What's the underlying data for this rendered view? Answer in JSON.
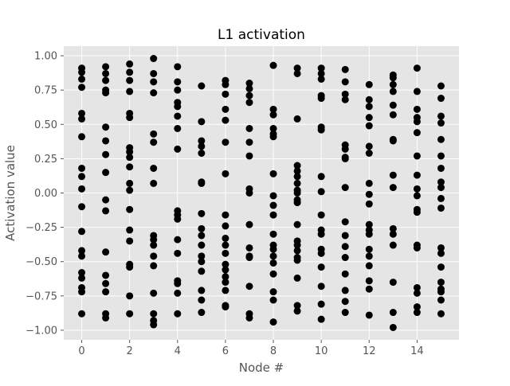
{
  "chart_data": {
    "type": "scatter",
    "title": "L1 activation",
    "xlabel": "Node #",
    "ylabel": "Activation value",
    "xlim": [
      -0.75,
      15.75
    ],
    "ylim": [
      -1.07,
      1.07
    ],
    "xticks": [
      0,
      2,
      4,
      6,
      8,
      10,
      12,
      14
    ],
    "xtick_labels": [
      "0",
      "2",
      "4",
      "6",
      "8",
      "10",
      "12",
      "14"
    ],
    "yticks": [
      -1.0,
      -0.75,
      -0.5,
      -0.25,
      0.0,
      0.25,
      0.5,
      0.75,
      1.0
    ],
    "ytick_labels": [
      "−1.00",
      "−0.75",
      "−0.50",
      "−0.25",
      "0.00",
      "0.25",
      "0.50",
      "0.75",
      "1.00"
    ],
    "grid": true,
    "background": "#e5e5e5",
    "marker_color": "#000000",
    "points_by_x": [
      {
        "x": 0,
        "y": [
          0.91,
          0.88,
          0.83,
          0.77,
          0.58,
          0.54,
          0.41,
          0.18,
          0.12,
          0.03,
          -0.1,
          -0.28,
          -0.42,
          -0.46,
          -0.58,
          -0.62,
          -0.69,
          -0.72,
          -0.88
        ]
      },
      {
        "x": 1,
        "y": [
          0.92,
          0.87,
          0.82,
          0.75,
          0.73,
          0.48,
          0.38,
          0.28,
          0.15,
          -0.05,
          -0.13,
          -0.43,
          -0.6,
          -0.66,
          -0.72,
          -0.88,
          -0.91
        ]
      },
      {
        "x": 2,
        "y": [
          0.94,
          0.88,
          0.82,
          0.74,
          0.58,
          0.55,
          0.33,
          0.3,
          0.26,
          0.19,
          0.07,
          0.02,
          -0.12,
          -0.27,
          -0.35,
          -0.52,
          -0.54,
          -0.75,
          -0.88
        ]
      },
      {
        "x": 3,
        "y": [
          0.98,
          0.87,
          0.81,
          0.73,
          0.43,
          0.37,
          0.18,
          0.07,
          -0.31,
          -0.34,
          -0.38,
          -0.46,
          -0.53,
          -0.73,
          -0.88,
          -0.93,
          -0.96
        ]
      },
      {
        "x": 4,
        "y": [
          0.92,
          0.81,
          0.75,
          0.66,
          0.63,
          0.56,
          0.47,
          0.32,
          -0.13,
          -0.16,
          -0.19,
          -0.34,
          -0.44,
          -0.64,
          -0.66,
          -0.73,
          -0.88
        ]
      },
      {
        "x": 5,
        "y": [
          0.78,
          0.52,
          0.38,
          0.34,
          0.29,
          0.08,
          0.07,
          -0.15,
          -0.26,
          -0.31,
          -0.38,
          -0.46,
          -0.5,
          -0.57,
          -0.71,
          -0.78,
          -0.87
        ]
      },
      {
        "x": 6,
        "y": [
          0.82,
          0.79,
          0.72,
          0.61,
          0.53,
          0.37,
          0.14,
          -0.16,
          -0.24,
          -0.33,
          -0.38,
          -0.44,
          -0.52,
          -0.56,
          -0.61,
          -0.65,
          -0.71,
          -0.82,
          -0.83
        ]
      },
      {
        "x": 7,
        "y": [
          0.8,
          0.76,
          0.71,
          0.66,
          0.47,
          0.37,
          0.27,
          0.03,
          0.0,
          -0.23,
          -0.4,
          -0.46,
          -0.47,
          -0.68,
          -0.88,
          -0.91
        ]
      },
      {
        "x": 8,
        "y": [
          0.93,
          0.61,
          0.57,
          0.47,
          0.43,
          0.41,
          0.14,
          -0.02,
          -0.09,
          -0.16,
          -0.3,
          -0.38,
          -0.41,
          -0.46,
          -0.51,
          -0.59,
          -0.72,
          -0.78,
          -0.94
        ]
      },
      {
        "x": 9,
        "y": [
          0.91,
          0.87,
          0.54,
          0.2,
          0.16,
          0.12,
          0.07,
          0.02,
          0.0,
          -0.05,
          -0.07,
          -0.23,
          -0.35,
          -0.38,
          -0.42,
          -0.47,
          -0.49,
          -0.62,
          -0.82,
          -0.86
        ]
      },
      {
        "x": 10,
        "y": [
          0.91,
          0.87,
          0.83,
          0.71,
          0.69,
          0.48,
          0.46,
          0.12,
          0.01,
          -0.16,
          -0.27,
          -0.3,
          -0.41,
          -0.44,
          -0.54,
          -0.68,
          -0.81,
          -0.92
        ]
      },
      {
        "x": 11,
        "y": [
          0.9,
          0.81,
          0.72,
          0.68,
          0.35,
          0.32,
          0.26,
          0.25,
          0.04,
          -0.21,
          -0.31,
          -0.39,
          -0.47,
          -0.59,
          -0.71,
          -0.79,
          -0.87
        ]
      },
      {
        "x": 12,
        "y": [
          0.79,
          0.68,
          0.63,
          0.55,
          0.49,
          0.34,
          0.29,
          0.07,
          -0.01,
          -0.08,
          -0.23,
          -0.27,
          -0.3,
          -0.41,
          -0.46,
          -0.53,
          -0.64,
          -0.7,
          -0.89
        ]
      },
      {
        "x": 13,
        "y": [
          0.86,
          0.84,
          0.79,
          0.74,
          0.64,
          0.57,
          0.39,
          0.38,
          0.13,
          0.04,
          -0.26,
          -0.3,
          -0.38,
          -0.65,
          -0.87,
          -0.98
        ]
      },
      {
        "x": 14,
        "y": [
          0.91,
          0.74,
          0.61,
          0.55,
          0.52,
          0.44,
          0.27,
          0.13,
          0.03,
          -0.02,
          -0.12,
          -0.14,
          -0.38,
          -0.4,
          -0.69,
          -0.73,
          -0.83,
          -0.87
        ]
      },
      {
        "x": 15,
        "y": [
          0.78,
          0.69,
          0.56,
          0.51,
          0.39,
          0.27,
          0.18,
          0.08,
          0.04,
          -0.04,
          -0.11,
          -0.4,
          -0.44,
          -0.54,
          -0.65,
          -0.7,
          -0.72,
          -0.78,
          -0.88
        ]
      }
    ]
  }
}
